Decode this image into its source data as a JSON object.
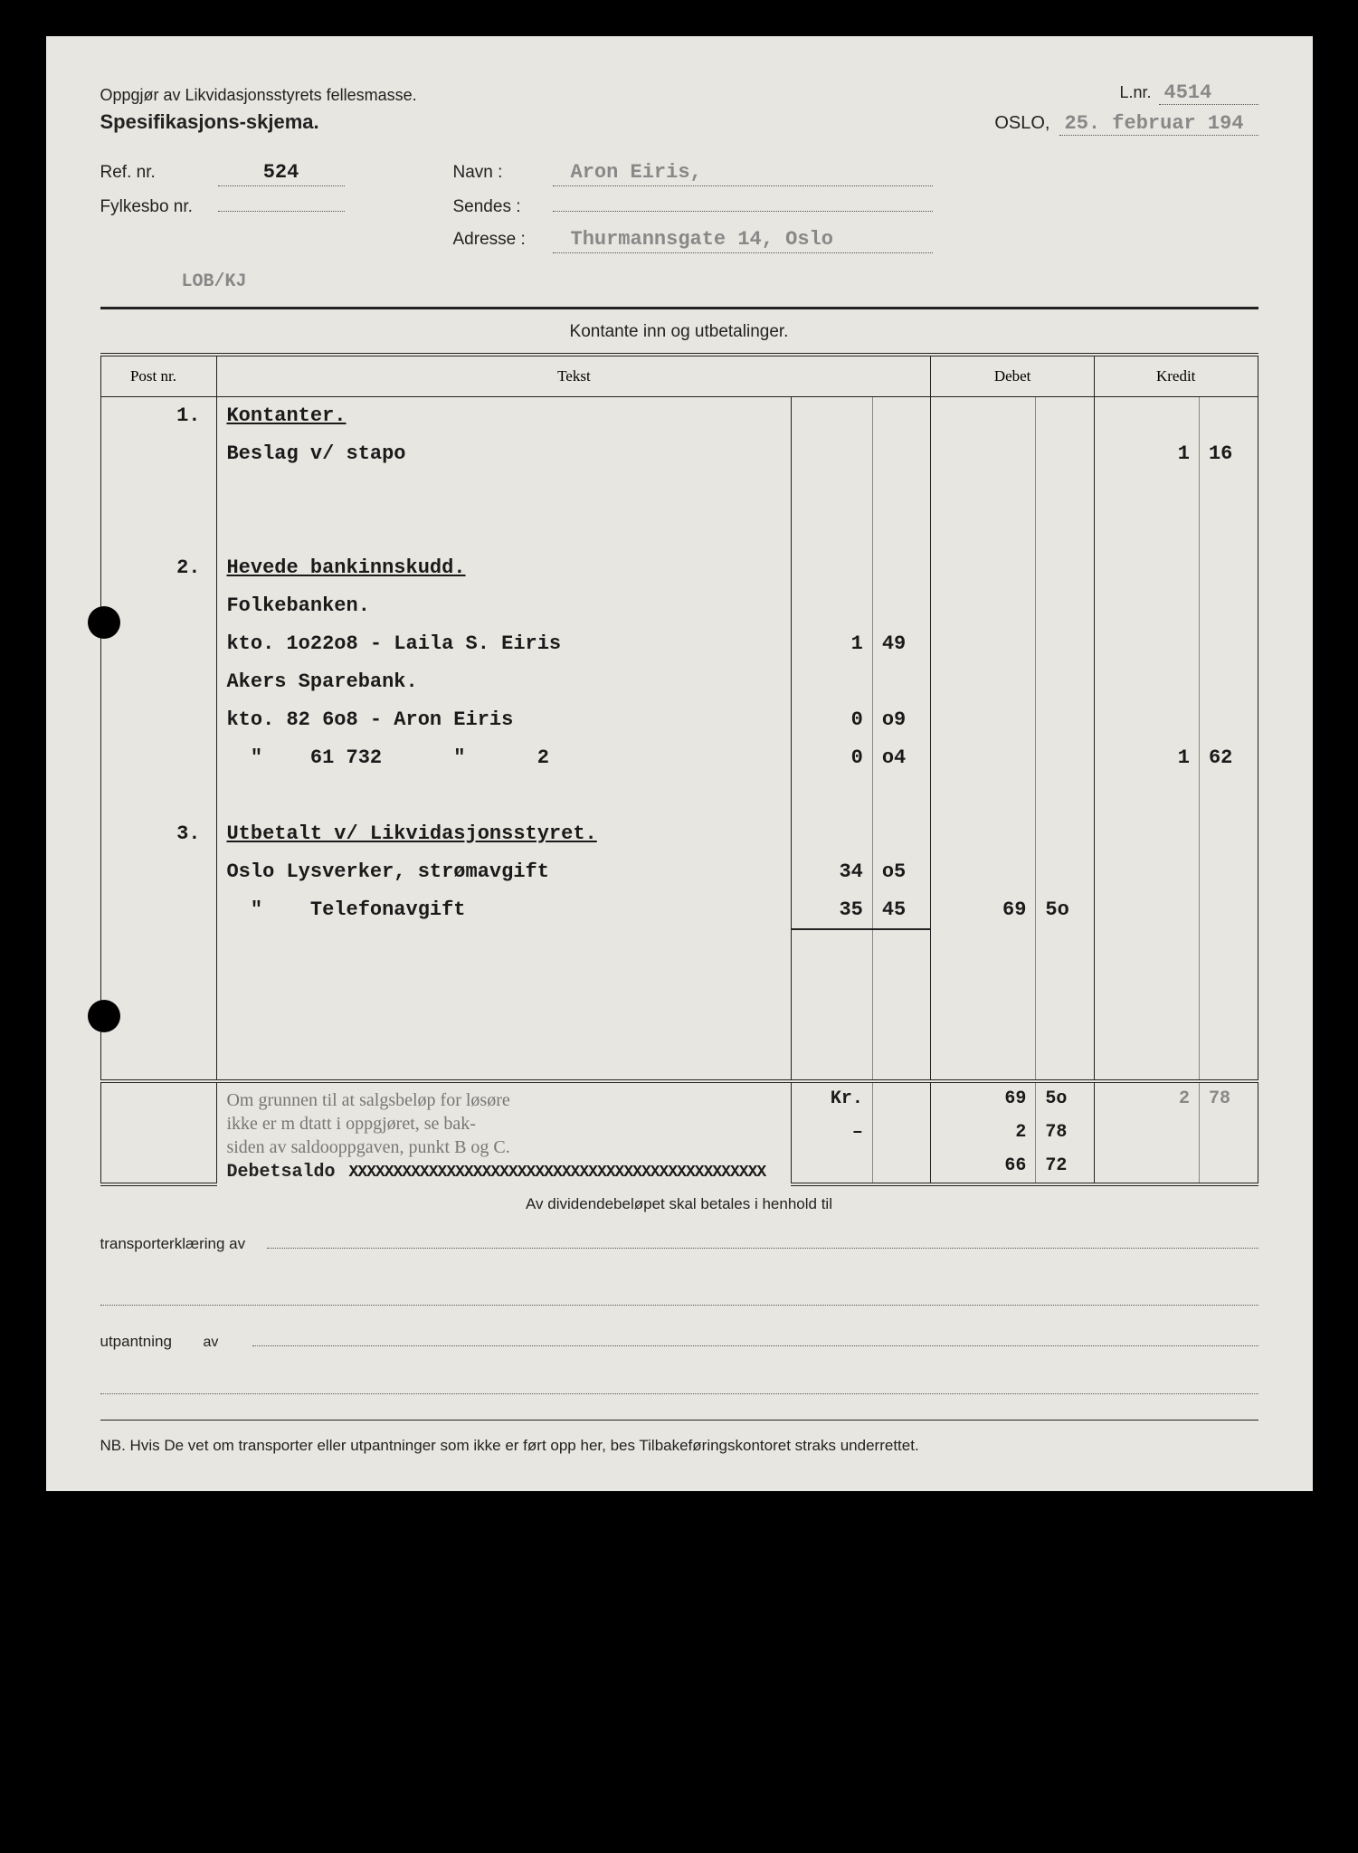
{
  "header": {
    "line1": "Oppgjør av Likvidasjonsstyrets fellesmasse.",
    "lnr_label": "L.nr.",
    "lnr_value": "4514",
    "spec_title": "Spesifikasjons-skjema.",
    "oslo_label": "OSLO,",
    "oslo_date": "25. februar 194"
  },
  "fields": {
    "ref_label": "Ref. nr.",
    "ref_value": "524",
    "navn_label": "Navn :",
    "navn_value": "Aron Eiris,",
    "fylkesbo_label": "Fylkesbo nr.",
    "fylkesbo_value": "",
    "sendes_label": "Sendes :",
    "sendes_value": "",
    "adresse_label": "Adresse :",
    "adresse_value": "Thurmannsgate 14, Oslo",
    "clerk": "LOB/KJ"
  },
  "section_title": "Kontante inn og utbetalinger.",
  "columns": {
    "post": "Post nr.",
    "tekst": "Tekst",
    "debet": "Debet",
    "kredit": "Kredit"
  },
  "rows": [
    {
      "post": "1.",
      "tekst": "Kontanter.",
      "u": true
    },
    {
      "tekst": "Beslag v/ stapo",
      "cred1": "1",
      "cred2": "16"
    },
    {
      "blank": true
    },
    {
      "blank": true
    },
    {
      "post": "2.",
      "tekst": "Hevede bankinnskudd.",
      "u": true
    },
    {
      "tekst": "Folkebanken."
    },
    {
      "tekst": "kto. 1o22o8 - Laila S. Eiris",
      "sub1": "1",
      "sub2": "49"
    },
    {
      "tekst": "Akers Sparebank."
    },
    {
      "tekst": "kto. 82 6o8 - Aron Eiris",
      "sub1": "0",
      "sub2": "o9"
    },
    {
      "tekst": "  \"    61 732      \"      2",
      "sub1": "0",
      "sub2": "o4",
      "cred1": "1",
      "cred2": "62"
    },
    {
      "blank": true
    },
    {
      "post": "3.",
      "tekst": "Utbetalt v/ Likvidasjonsstyret.",
      "u": true
    },
    {
      "tekst": "Oslo Lysverker, strømavgift",
      "sub1": "34",
      "sub2": "o5"
    },
    {
      "tekst": "  \"    Telefonavgift",
      "sub1": "35",
      "sub2": "45",
      "sub_u": true,
      "deb1": "69",
      "deb2": "5o"
    },
    {
      "blank": true
    },
    {
      "blank": true
    },
    {
      "blank": true
    },
    {
      "blank": true
    }
  ],
  "totals": {
    "note_l1": "Om grunnen til at salgsbeløp for løsøre",
    "note_l2": "ikke er m dtatt i oppgjøret, se bak-",
    "note_l3": "siden av saldooppgaven, punkt B og C.",
    "kr": "Kr.",
    "r1_deb1": "69",
    "r1_deb2": "5o",
    "r1_cred1": "2",
    "r1_cred2": "78",
    "dash": "–",
    "r2_deb1": "2",
    "r2_deb2": "78",
    "debetsaldo": "Debetsaldo",
    "xxx": "XXXXXXXXXXXXXXXXXXXXXXXXXXXXXXXXXXXXXXXXXXXXXXX",
    "r3_deb1": "66",
    "r3_deb2": "72"
  },
  "footer": {
    "dividend": "Av dividendebeløpet skal betales i henhold til",
    "transport_label": "transporterklæring av",
    "utpantning_label": "utpantning",
    "av": "av",
    "nb": "NB. Hvis De vet om transporter eller utpantninger som ikke er ført opp her, bes Tilbakeføringskontoret straks underrettet."
  }
}
